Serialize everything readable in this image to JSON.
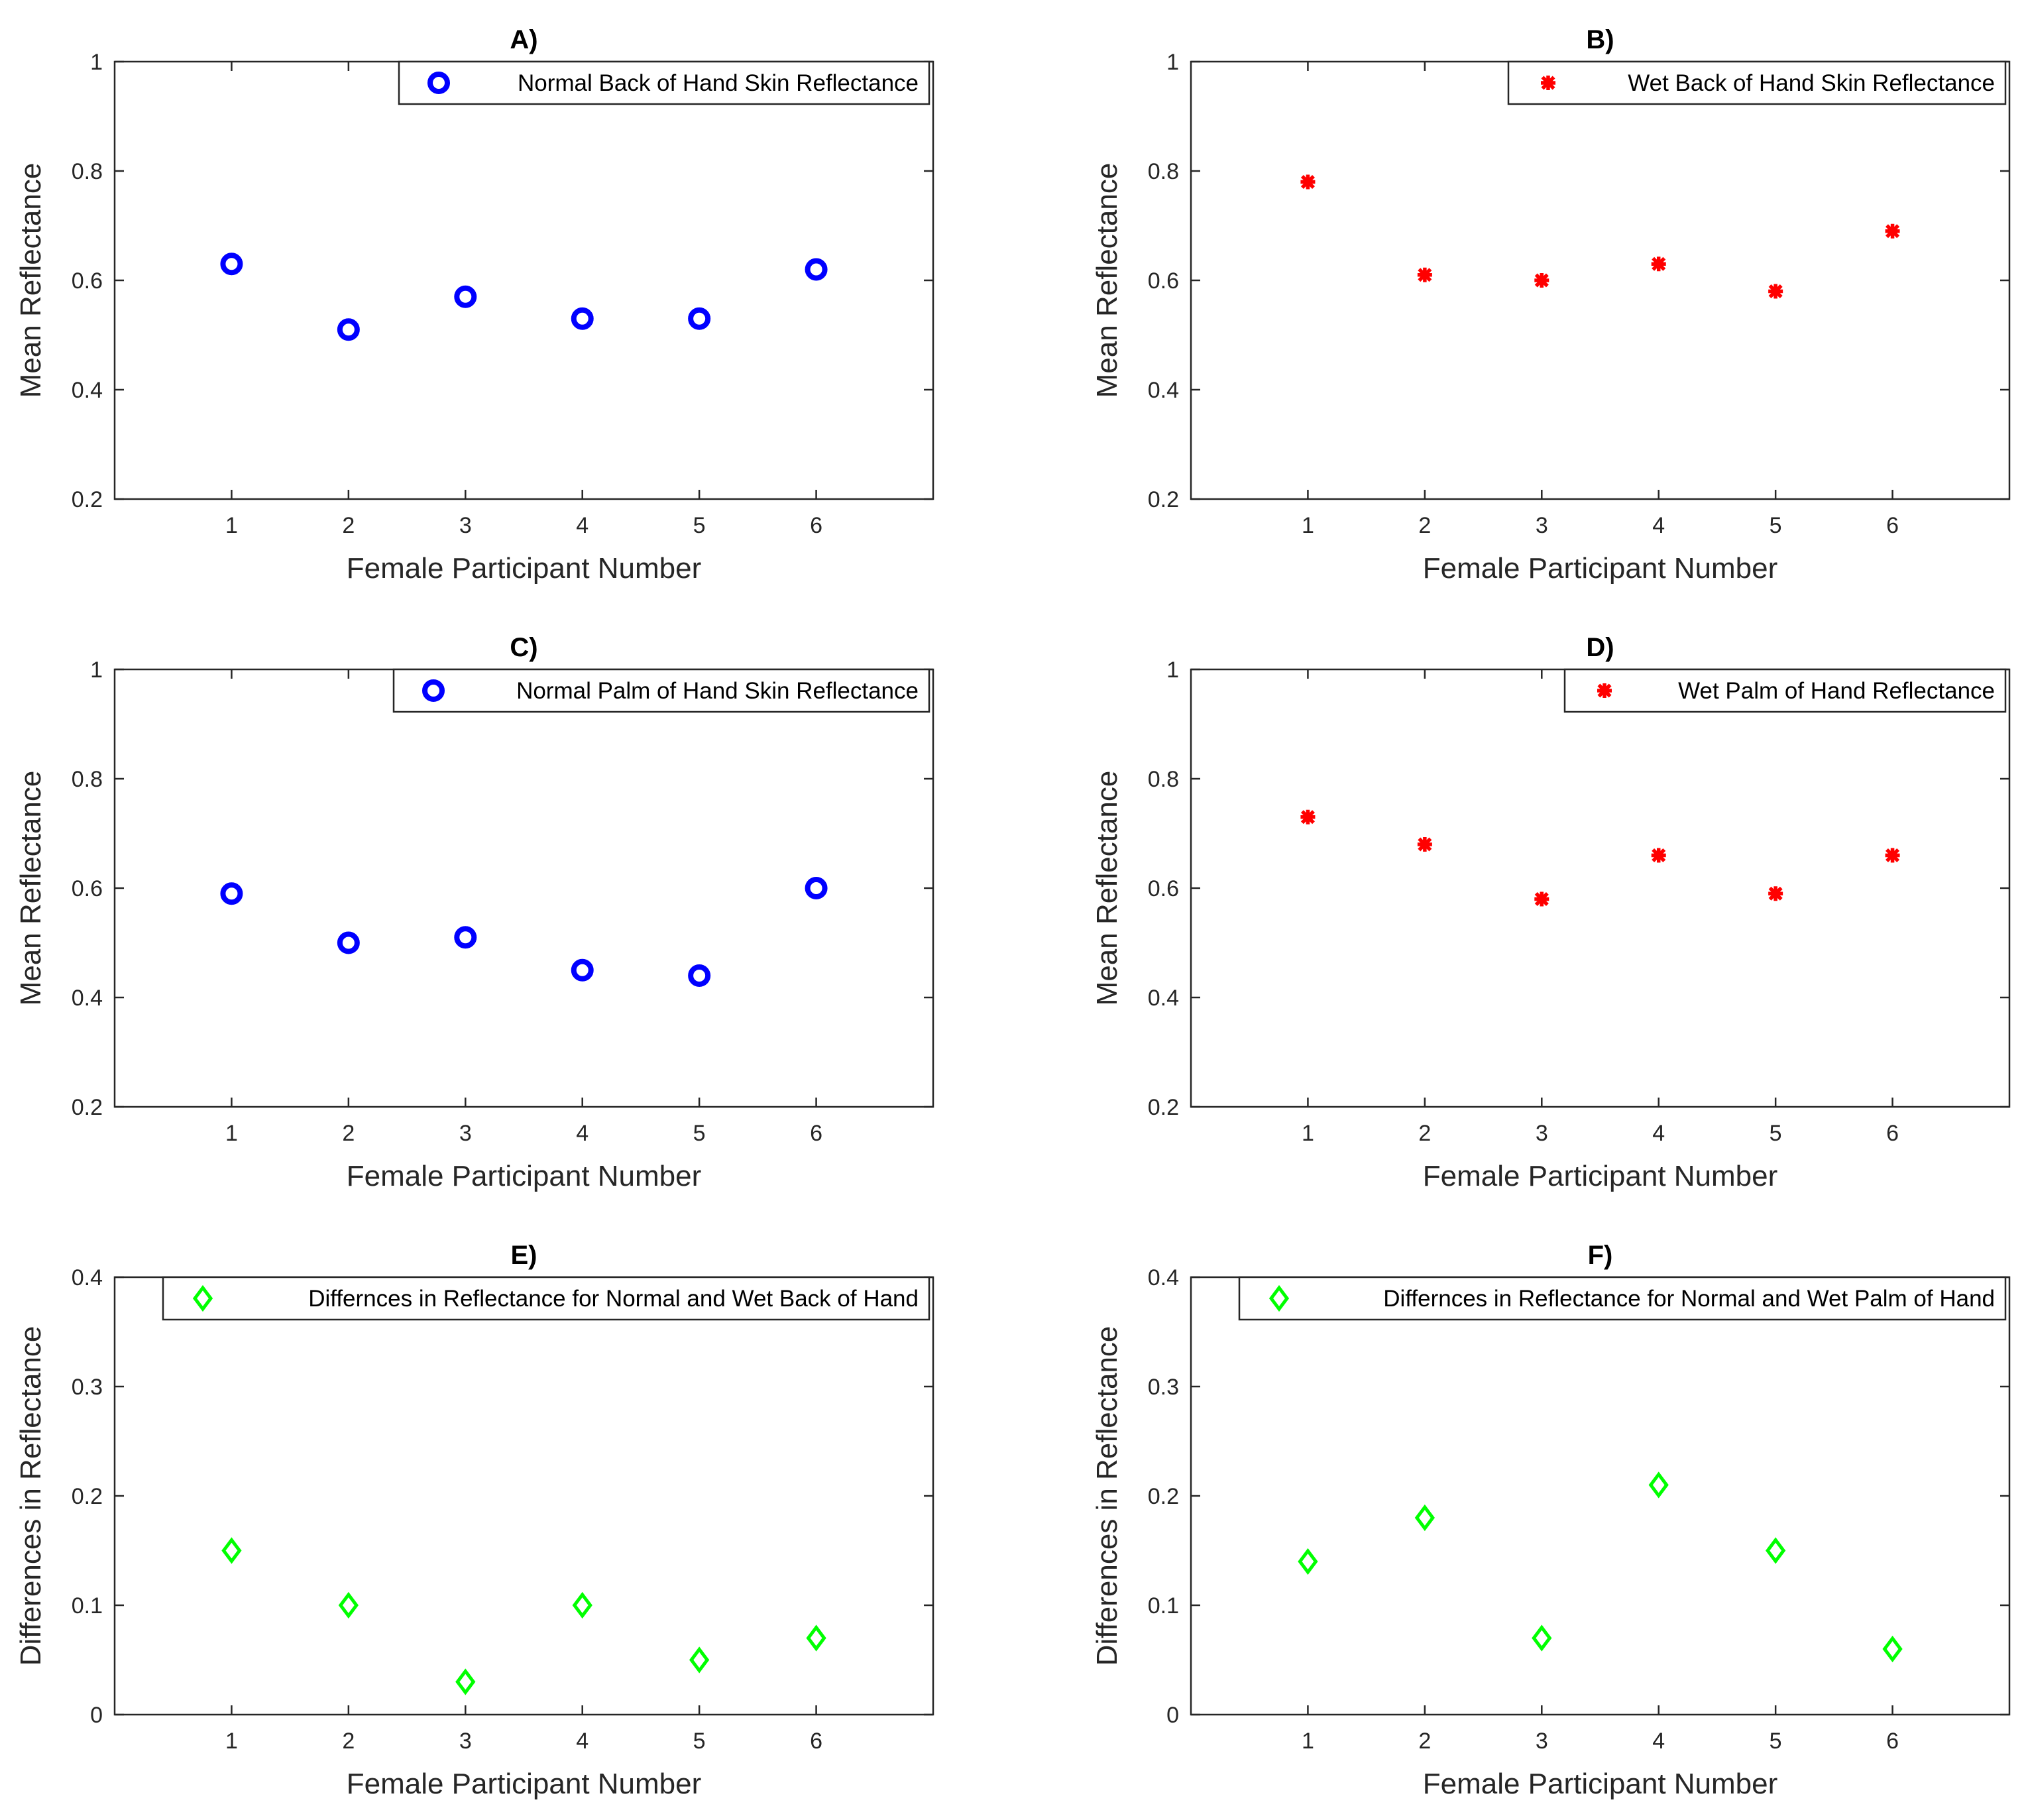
{
  "chart_data": [
    {
      "panel": "A)",
      "title": "A)",
      "type": "scatter",
      "xlabel": "Female Participant Number",
      "ylabel": "Mean Reflectance",
      "xlim": [
        0,
        7
      ],
      "ylim": [
        0.2,
        1
      ],
      "xticks": [
        "1",
        "2",
        "3",
        "4",
        "5",
        "6"
      ],
      "yticks": [
        "0.2",
        "0.4",
        "0.6",
        "0.8",
        "1"
      ],
      "legend": "Normal Back of Hand Skin Reflectance",
      "legend_position": "top-right",
      "marker": "circle",
      "color": "#0000ff",
      "x": [
        1,
        2,
        3,
        4,
        5,
        6
      ],
      "y": [
        0.63,
        0.51,
        0.57,
        0.53,
        0.53,
        0.62
      ]
    },
    {
      "panel": "B)",
      "title": "B)",
      "type": "scatter",
      "xlabel": "Female Participant Number",
      "ylabel": "Mean Reflectance",
      "xlim": [
        0,
        7
      ],
      "ylim": [
        0.2,
        1
      ],
      "xticks": [
        "1",
        "2",
        "3",
        "4",
        "5",
        "6"
      ],
      "yticks": [
        "0.2",
        "0.4",
        "0.6",
        "0.8",
        "1"
      ],
      "legend": "Wet Back of Hand Skin Reflectance",
      "legend_position": "top-right",
      "marker": "asterisk",
      "color": "#ff0000",
      "x": [
        1,
        2,
        3,
        4,
        5,
        6
      ],
      "y": [
        0.78,
        0.61,
        0.6,
        0.63,
        0.58,
        0.69
      ]
    },
    {
      "panel": "C)",
      "title": "C)",
      "type": "scatter",
      "xlabel": "Female Participant Number",
      "ylabel": "Mean Reflectance",
      "xlim": [
        0,
        7
      ],
      "ylim": [
        0.2,
        1
      ],
      "xticks": [
        "1",
        "2",
        "3",
        "4",
        "5",
        "6"
      ],
      "yticks": [
        "0.2",
        "0.4",
        "0.6",
        "0.8",
        "1"
      ],
      "legend": "Normal Palm of Hand Skin Reflectance",
      "legend_position": "top-right",
      "marker": "circle",
      "color": "#0000ff",
      "x": [
        1,
        2,
        3,
        4,
        5,
        6
      ],
      "y": [
        0.59,
        0.5,
        0.51,
        0.45,
        0.44,
        0.6
      ]
    },
    {
      "panel": "D)",
      "title": "D)",
      "type": "scatter",
      "xlabel": "Female Participant Number",
      "ylabel": "Mean Reflectance",
      "xlim": [
        0,
        7
      ],
      "ylim": [
        0.2,
        1
      ],
      "xticks": [
        "1",
        "2",
        "3",
        "4",
        "5",
        "6"
      ],
      "yticks": [
        "0.2",
        "0.4",
        "0.6",
        "0.8",
        "1"
      ],
      "legend": "Wet Palm of Hand Reflectance",
      "legend_position": "top-right",
      "marker": "asterisk",
      "color": "#ff0000",
      "x": [
        1,
        2,
        3,
        4,
        5,
        6
      ],
      "y": [
        0.73,
        0.68,
        0.58,
        0.66,
        0.59,
        0.66
      ]
    },
    {
      "panel": "E)",
      "title": "E)",
      "type": "scatter",
      "xlabel": "Female Participant Number",
      "ylabel": "Differences in Reflectance",
      "xlim": [
        0,
        7
      ],
      "ylim": [
        0,
        0.4
      ],
      "xticks": [
        "1",
        "2",
        "3",
        "4",
        "5",
        "6"
      ],
      "yticks": [
        "0",
        "0.1",
        "0.2",
        "0.3",
        "0.4"
      ],
      "legend": "Differnces in Reflectance for Normal and Wet Back of Hand",
      "legend_position": "top-right",
      "marker": "diamond",
      "color": "#00ff00",
      "x": [
        1,
        2,
        3,
        4,
        5,
        6
      ],
      "y": [
        0.15,
        0.1,
        0.03,
        0.1,
        0.05,
        0.07
      ]
    },
    {
      "panel": "F)",
      "title": "F)",
      "type": "scatter",
      "xlabel": "Female Participant Number",
      "ylabel": "Differences in Reflectance",
      "xlim": [
        0,
        7
      ],
      "ylim": [
        0,
        0.4
      ],
      "xticks": [
        "1",
        "2",
        "3",
        "4",
        "5",
        "6"
      ],
      "yticks": [
        "0",
        "0.1",
        "0.2",
        "0.3",
        "0.4"
      ],
      "legend": "Differnces in Reflectance for Normal and Wet Palm of Hand",
      "legend_position": "top-right",
      "marker": "diamond",
      "color": "#00ff00",
      "x": [
        1,
        2,
        3,
        4,
        5,
        6
      ],
      "y": [
        0.14,
        0.18,
        0.07,
        0.21,
        0.15,
        0.06
      ]
    }
  ]
}
